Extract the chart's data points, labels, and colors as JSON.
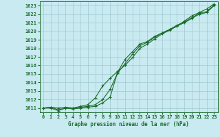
{
  "title": "Graphe pression niveau de la mer (hPa)",
  "bg_color": "#c8eaf0",
  "grid_color": "#a0c8d0",
  "line_color": "#1a6b2a",
  "xlim": [
    -0.5,
    23.5
  ],
  "ylim": [
    1010.5,
    1023.5
  ],
  "xticks": [
    0,
    1,
    2,
    3,
    4,
    5,
    6,
    7,
    8,
    9,
    10,
    11,
    12,
    13,
    14,
    15,
    16,
    17,
    18,
    19,
    20,
    21,
    22,
    23
  ],
  "yticks": [
    1011,
    1012,
    1013,
    1014,
    1015,
    1016,
    1017,
    1018,
    1019,
    1020,
    1021,
    1022,
    1023
  ],
  "line1_y": [
    1011.0,
    1011.1,
    1011.0,
    1011.1,
    1011.0,
    1011.1,
    1011.2,
    1011.4,
    1012.0,
    1013.2,
    1015.1,
    1016.2,
    1017.3,
    1018.3,
    1018.7,
    1019.3,
    1019.8,
    1020.2,
    1020.6,
    1021.0,
    1021.5,
    1022.0,
    1022.2,
    1023.0
  ],
  "line2_y": [
    1011.0,
    1011.0,
    1010.7,
    1011.0,
    1010.9,
    1011.0,
    1011.1,
    1011.2,
    1011.6,
    1012.3,
    1015.2,
    1016.7,
    1017.6,
    1018.5,
    1018.8,
    1019.4,
    1019.8,
    1020.2,
    1020.7,
    1021.1,
    1021.6,
    1022.1,
    1022.3,
    1023.1
  ],
  "line3_y": [
    1011.0,
    1011.1,
    1010.8,
    1011.0,
    1011.0,
    1011.2,
    1011.4,
    1012.2,
    1013.6,
    1014.5,
    1015.3,
    1016.0,
    1016.9,
    1018.0,
    1018.5,
    1019.1,
    1019.7,
    1020.1,
    1020.6,
    1021.2,
    1021.8,
    1022.2,
    1022.6,
    1023.2
  ],
  "marker_size": 2.5,
  "line_width": 0.8,
  "tick_fontsize": 5.0,
  "title_fontsize": 5.5
}
